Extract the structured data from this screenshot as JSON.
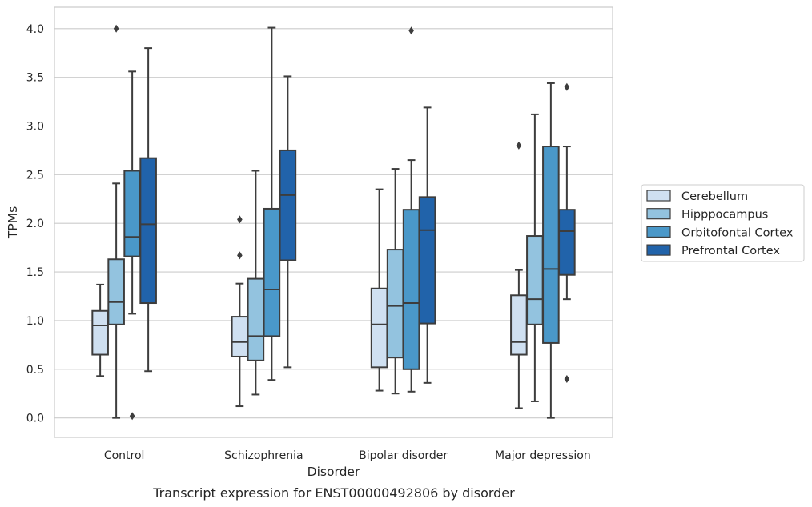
{
  "chart_data": {
    "type": "boxplot",
    "caption": "Transcript expression for ENST00000492806 by disorder",
    "xlabel": "Disorder",
    "ylabel": "TPMs",
    "ylim": [
      -0.2,
      4.22
    ],
    "yticks": [
      "0.0",
      "0.5",
      "1.0",
      "1.5",
      "2.0",
      "2.5",
      "3.0",
      "3.5",
      "4.0"
    ],
    "grid": true,
    "legend_position": "right",
    "categories": [
      "Control",
      "Schizophrenia",
      "Bipolar disorder",
      "Major depression"
    ],
    "series": [
      {
        "name": "Cerebellum",
        "color": "#cfe0f1",
        "boxes": [
          {
            "whislo": 0.43,
            "q1": 0.65,
            "med": 0.95,
            "q3": 1.1,
            "whishi": 1.37,
            "fliers": []
          },
          {
            "whislo": 0.12,
            "q1": 0.63,
            "med": 0.78,
            "q3": 1.04,
            "whishi": 1.38,
            "fliers": [
              2.04,
              1.67
            ]
          },
          {
            "whislo": 0.28,
            "q1": 0.52,
            "med": 0.96,
            "q3": 1.33,
            "whishi": 2.35,
            "fliers": []
          },
          {
            "whislo": 0.1,
            "q1": 0.65,
            "med": 0.78,
            "q3": 1.26,
            "whishi": 1.52,
            "fliers": [
              2.8
            ]
          }
        ]
      },
      {
        "name": "Hipppocampus",
        "color": "#93c3df",
        "boxes": [
          {
            "whislo": 0.0,
            "q1": 0.96,
            "med": 1.19,
            "q3": 1.63,
            "whishi": 2.41,
            "fliers": [
              4.0
            ]
          },
          {
            "whislo": 0.24,
            "q1": 0.59,
            "med": 0.84,
            "q3": 1.43,
            "whishi": 2.54,
            "fliers": []
          },
          {
            "whislo": 0.25,
            "q1": 0.62,
            "med": 1.15,
            "q3": 1.73,
            "whishi": 2.56,
            "fliers": []
          },
          {
            "whislo": 0.17,
            "q1": 0.96,
            "med": 1.22,
            "q3": 1.87,
            "whishi": 3.12,
            "fliers": []
          }
        ]
      },
      {
        "name": "Orbitofontal Cortex",
        "color": "#4a98c9",
        "boxes": [
          {
            "whislo": 1.07,
            "q1": 1.66,
            "med": 1.86,
            "q3": 2.54,
            "whishi": 3.56,
            "fliers": [
              0.02
            ]
          },
          {
            "whislo": 0.39,
            "q1": 0.84,
            "med": 1.32,
            "q3": 2.15,
            "whishi": 4.01,
            "fliers": []
          },
          {
            "whislo": 0.27,
            "q1": 0.5,
            "med": 1.18,
            "q3": 2.14,
            "whishi": 2.65,
            "fliers": [
              3.98
            ]
          },
          {
            "whislo": 0.0,
            "q1": 0.77,
            "med": 1.53,
            "q3": 2.79,
            "whishi": 3.44,
            "fliers": []
          }
        ]
      },
      {
        "name": "Prefrontal Cortex",
        "color": "#2163aa",
        "boxes": [
          {
            "whislo": 0.48,
            "q1": 1.18,
            "med": 1.99,
            "q3": 2.67,
            "whishi": 3.8,
            "fliers": []
          },
          {
            "whislo": 0.52,
            "q1": 1.62,
            "med": 2.29,
            "q3": 2.75,
            "whishi": 3.51,
            "fliers": []
          },
          {
            "whislo": 0.36,
            "q1": 0.97,
            "med": 1.93,
            "q3": 2.27,
            "whishi": 3.19,
            "fliers": []
          },
          {
            "whislo": 1.22,
            "q1": 1.47,
            "med": 1.92,
            "q3": 2.14,
            "whishi": 2.79,
            "fliers": [
              3.4,
              0.4
            ]
          }
        ]
      }
    ]
  }
}
